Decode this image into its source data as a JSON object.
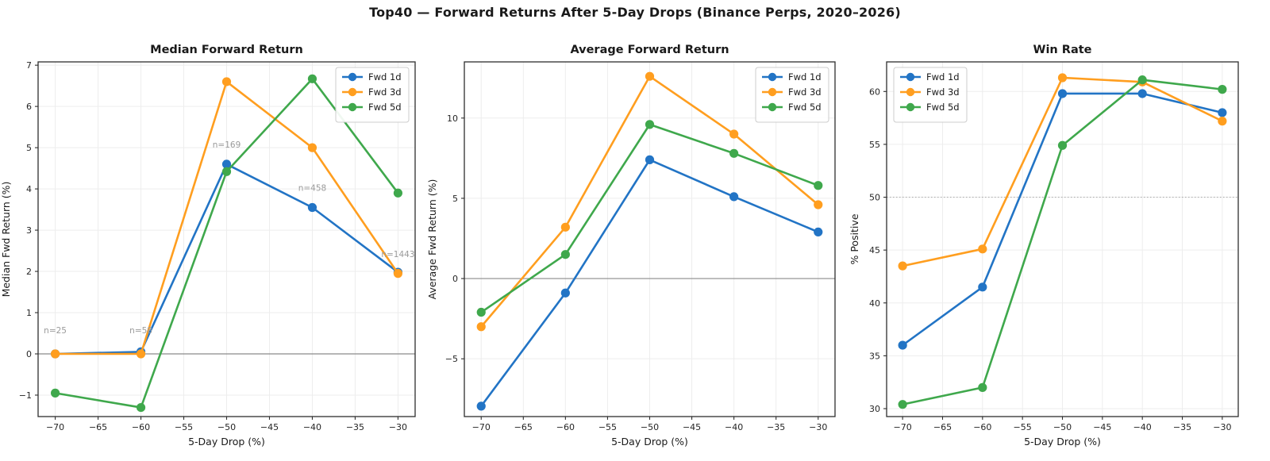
{
  "figure_title": "Top40 — Forward Returns After 5-Day Drops (Binance Perps, 2020–2026)",
  "colors": {
    "fwd1d": "#2274C5",
    "fwd3d": "#FF9E1F",
    "fwd5d": "#3FA84C",
    "annotation": "#9a9a9a",
    "grid": "#ededed",
    "refline": "#8a8a8a",
    "spine": "#2e2e2e",
    "tick_text": "#262626",
    "legend_border": "#cccccc"
  },
  "chart_data": [
    {
      "type": "line",
      "title": "Median Forward Return",
      "xlabel": "5-Day Drop (%)",
      "ylabel": "Median Fwd Return (%)",
      "x": [
        -70,
        -60,
        -50,
        -40,
        -30
      ],
      "x_ticks": [
        -70,
        -65,
        -60,
        -55,
        -50,
        -45,
        -40,
        -35,
        -30
      ],
      "y_ticks": [
        -1,
        0,
        1,
        2,
        3,
        4,
        5,
        6,
        7
      ],
      "xlim": [
        -72,
        -28
      ],
      "ylim": [
        -1.52,
        7.08
      ],
      "grid": true,
      "legend_position": "top-right",
      "ref_line": {
        "y": 0,
        "style": "solid"
      },
      "series": [
        {
          "name": "Fwd 1d",
          "color_key": "fwd1d",
          "values": [
            0.0,
            0.05,
            4.6,
            3.55,
            1.98
          ]
        },
        {
          "name": "Fwd 3d",
          "color_key": "fwd3d",
          "values": [
            0.0,
            0.0,
            6.6,
            5.0,
            1.95
          ]
        },
        {
          "name": "Fwd 5d",
          "color_key": "fwd5d",
          "values": [
            -0.95,
            -1.3,
            4.42,
            6.67,
            3.9
          ]
        }
      ],
      "annotations": [
        {
          "x": -70,
          "y": 0.5,
          "text": "n=25"
        },
        {
          "x": -60,
          "y": 0.5,
          "text": "n=58"
        },
        {
          "x": -50,
          "y": 5.0,
          "text": "n=169"
        },
        {
          "x": -40,
          "y": 3.95,
          "text": "n=458"
        },
        {
          "x": -30,
          "y": 2.35,
          "text": "n=1443"
        }
      ]
    },
    {
      "type": "line",
      "title": "Average Forward Return",
      "xlabel": "5-Day Drop (%)",
      "ylabel": "Average Fwd Return (%)",
      "x": [
        -70,
        -60,
        -50,
        -40,
        -30
      ],
      "x_ticks": [
        -70,
        -65,
        -60,
        -55,
        -50,
        -45,
        -40,
        -35,
        -30
      ],
      "y_ticks": [
        -5,
        0,
        5,
        10
      ],
      "xlim": [
        -72,
        -28
      ],
      "ylim": [
        -8.6,
        13.5
      ],
      "grid": true,
      "legend_position": "top-right",
      "ref_line": {
        "y": 0,
        "style": "solid"
      },
      "series": [
        {
          "name": "Fwd 1d",
          "color_key": "fwd1d",
          "values": [
            -7.95,
            -0.9,
            7.4,
            5.1,
            2.9
          ]
        },
        {
          "name": "Fwd 3d",
          "color_key": "fwd3d",
          "values": [
            -3.0,
            3.2,
            12.6,
            9.0,
            4.6
          ]
        },
        {
          "name": "Fwd 5d",
          "color_key": "fwd5d",
          "values": [
            -2.1,
            1.5,
            9.6,
            7.8,
            5.8
          ]
        }
      ],
      "annotations": []
    },
    {
      "type": "line",
      "title": "Win Rate",
      "xlabel": "5-Day Drop (%)",
      "ylabel": "% Positive",
      "x": [
        -70,
        -60,
        -50,
        -40,
        -30
      ],
      "x_ticks": [
        -70,
        -65,
        -60,
        -55,
        -50,
        -45,
        -40,
        -35,
        -30
      ],
      "y_ticks": [
        30,
        35,
        40,
        45,
        50,
        55,
        60
      ],
      "xlim": [
        -72,
        -28
      ],
      "ylim": [
        29.25,
        62.8
      ],
      "grid": true,
      "legend_position": "top-left",
      "ref_line": {
        "y": 50,
        "style": "dotted"
      },
      "series": [
        {
          "name": "Fwd 1d",
          "color_key": "fwd1d",
          "values": [
            36.0,
            41.5,
            59.8,
            59.8,
            58.0
          ]
        },
        {
          "name": "Fwd 3d",
          "color_key": "fwd3d",
          "values": [
            43.5,
            45.1,
            61.3,
            60.9,
            57.2
          ]
        },
        {
          "name": "Fwd 5d",
          "color_key": "fwd5d",
          "values": [
            30.4,
            32.0,
            54.9,
            61.1,
            60.2
          ]
        }
      ],
      "annotations": []
    }
  ]
}
